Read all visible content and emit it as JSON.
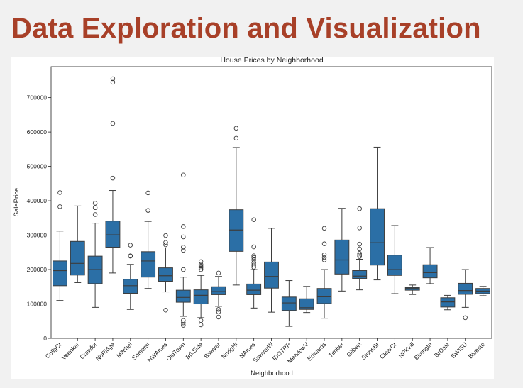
{
  "slide": {
    "title": "Data Exploration and Visualization"
  },
  "chart_data": {
    "type": "box",
    "title": "House Prices by Neighborhood",
    "xlabel": "Neighborhood",
    "ylabel": "SalePrice",
    "ylim": [
      0,
      790000
    ],
    "yticks": [
      0,
      100000,
      200000,
      300000,
      400000,
      500000,
      600000,
      700000
    ],
    "grid": false,
    "color": "#2b6fa6",
    "categories": [
      "CollgCr",
      "Veenker",
      "Crawfor",
      "NoRidge",
      "Mitchel",
      "Somerst",
      "NWAmes",
      "OldTown",
      "BrkSide",
      "Sawyer",
      "NridgHt",
      "NAmes",
      "SawyerW",
      "IDOTRR",
      "MeadowV",
      "Edwards",
      "Timber",
      "Gilbert",
      "StoneBr",
      "ClearCr",
      "NPkVill",
      "Blmngtn",
      "BrDale",
      "SWISU",
      "Blueste"
    ],
    "boxes": [
      {
        "low": 110000,
        "q1": 153000,
        "median": 197000,
        "q3": 225000,
        "high": 312000,
        "outliers": [
          383000,
          424000
        ]
      },
      {
        "low": 162000,
        "q1": 184000,
        "median": 218000,
        "q3": 282000,
        "high": 385000,
        "outliers": []
      },
      {
        "low": 90000,
        "q1": 159000,
        "median": 200000,
        "q3": 239000,
        "high": 335000,
        "outliers": [
          360000,
          380000,
          393000
        ]
      },
      {
        "low": 190000,
        "q1": 265000,
        "median": 301000,
        "q3": 341000,
        "high": 430000,
        "outliers": [
          466000,
          625000,
          745000,
          755000
        ]
      },
      {
        "low": 84000,
        "q1": 131000,
        "median": 153000,
        "q3": 172000,
        "high": 215000,
        "outliers": [
          239000,
          240000,
          271000
        ]
      },
      {
        "low": 145000,
        "q1": 178000,
        "median": 225000,
        "q3": 252000,
        "high": 340000,
        "outliers": [
          372000,
          423000
        ]
      },
      {
        "low": 135000,
        "q1": 166000,
        "median": 182000,
        "q3": 205000,
        "high": 263000,
        "outliers": [
          82000,
          272000,
          279000,
          299000
        ]
      },
      {
        "low": 64000,
        "q1": 105000,
        "median": 119000,
        "q3": 140000,
        "high": 178000,
        "outliers": [
          37900,
          45000,
          52000,
          200000,
          256000,
          265000,
          295000,
          325000,
          475000
        ]
      },
      {
        "low": 60000,
        "q1": 100000,
        "median": 125000,
        "q3": 141000,
        "high": 183000,
        "outliers": [
          39300,
          52000,
          200000,
          205000,
          210000,
          215000,
          223000
        ]
      },
      {
        "low": 93000,
        "q1": 127000,
        "median": 136000,
        "q3": 150000,
        "high": 180000,
        "outliers": [
          62000,
          77000,
          84000,
          190000
        ]
      },
      {
        "low": 155000,
        "q1": 253000,
        "median": 315000,
        "q3": 374000,
        "high": 555000,
        "outliers": [
          582000,
          611000
        ]
      },
      {
        "low": 88000,
        "q1": 127000,
        "median": 140000,
        "q3": 158000,
        "high": 200000,
        "outliers": [
          207000,
          213000,
          220000,
          228000,
          235000,
          240000,
          266000,
          345000
        ]
      },
      {
        "low": 76000,
        "q1": 146000,
        "median": 180000,
        "q3": 222000,
        "high": 320000,
        "outliers": []
      },
      {
        "low": 34900,
        "q1": 81000,
        "median": 103000,
        "q3": 120000,
        "high": 168000,
        "outliers": []
      },
      {
        "low": 75000,
        "q1": 84000,
        "median": 89000,
        "q3": 115000,
        "high": 151000,
        "outliers": []
      },
      {
        "low": 58500,
        "q1": 101000,
        "median": 121000,
        "q3": 145000,
        "high": 200000,
        "outliers": [
          228000,
          235000,
          243000,
          275000,
          320000
        ]
      },
      {
        "low": 137500,
        "q1": 187000,
        "median": 228000,
        "q3": 286000,
        "high": 378000,
        "outliers": []
      },
      {
        "low": 141000,
        "q1": 174000,
        "median": 181000,
        "q3": 197000,
        "high": 230000,
        "outliers": [
          238000,
          242000,
          247000,
          260000,
          274000,
          321000,
          377000
        ]
      },
      {
        "low": 170000,
        "q1": 213000,
        "median": 278000,
        "q3": 377000,
        "high": 556000,
        "outliers": []
      },
      {
        "low": 130000,
        "q1": 183000,
        "median": 200000,
        "q3": 242000,
        "high": 328000,
        "outliers": []
      },
      {
        "low": 127500,
        "q1": 140000,
        "median": 146000,
        "q3": 148000,
        "high": 155000,
        "outliers": []
      },
      {
        "low": 159000,
        "q1": 176000,
        "median": 191000,
        "q3": 214000,
        "high": 264000,
        "outliers": []
      },
      {
        "low": 83000,
        "q1": 91000,
        "median": 106000,
        "q3": 118000,
        "high": 125000,
        "outliers": []
      },
      {
        "low": 90000,
        "q1": 128000,
        "median": 139000,
        "q3": 160000,
        "high": 200000,
        "outliers": [
          60000
        ]
      },
      {
        "low": 124000,
        "q1": 130000,
        "median": 137500,
        "q3": 145000,
        "high": 151000,
        "outliers": []
      }
    ]
  }
}
